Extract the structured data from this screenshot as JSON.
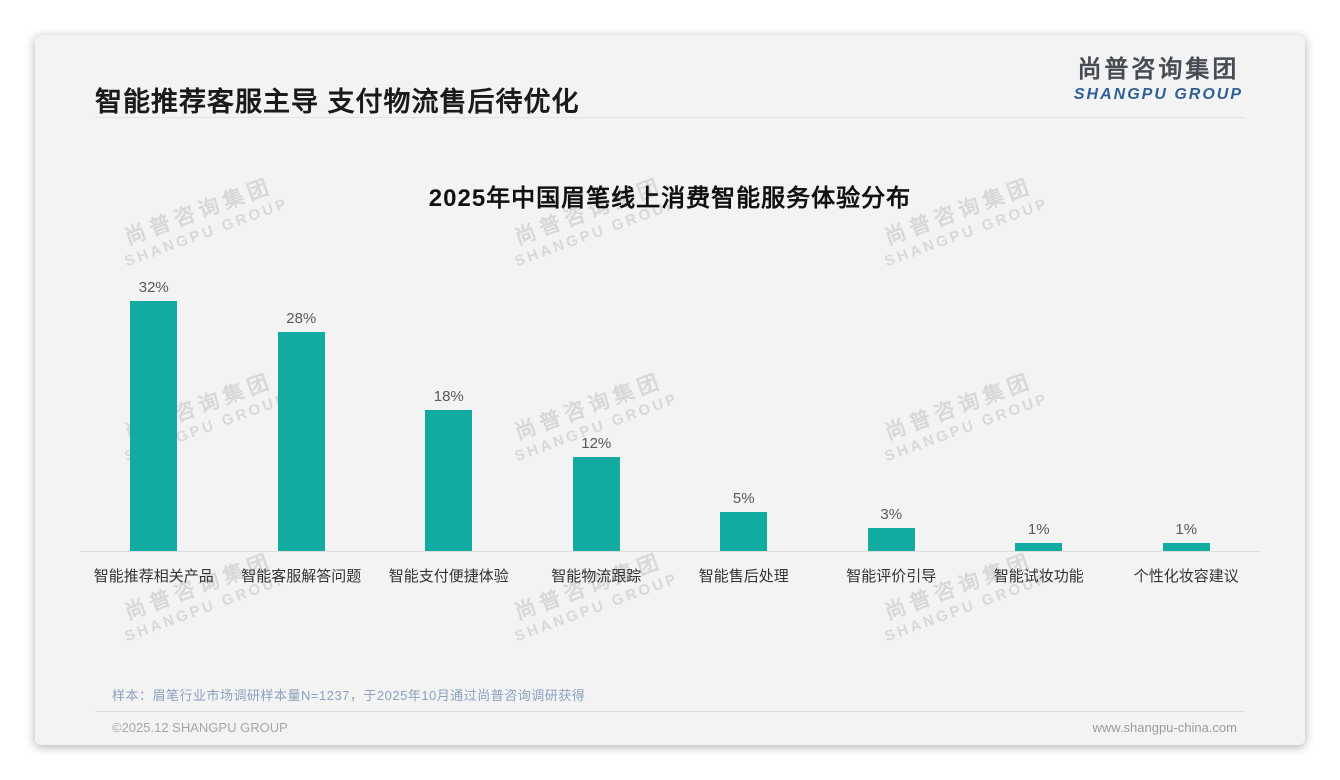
{
  "page": {
    "title": "智能推荐客服主导 支付物流售后待优化",
    "logo": {
      "cn": "尚普咨询集团",
      "en": "SHANGPU GROUP"
    },
    "watermark": {
      "cn": "尚普咨询集团",
      "en": "SHANGPU GROUP"
    },
    "footnote": "样本：眉笔行业市场调研样本量N=1237，于2025年10月通过尚普咨询调研获得",
    "copyright": "©2025.12 SHANGPU GROUP",
    "website": "www.shangpu-china.com"
  },
  "colors": {
    "bar": "#11aba2",
    "title": "#1a1a1a",
    "logo_en_blue": "#2e6096",
    "footnote_blue": "#8ba1bd"
  },
  "chart_data": {
    "type": "bar",
    "title": "2025年中国眉笔线上消费智能服务体验分布",
    "categories": [
      "智能推荐相关产品",
      "智能客服解答问题",
      "智能支付便捷体验",
      "智能物流跟踪",
      "智能售后处理",
      "智能评价引导",
      "智能试妆功能",
      "个性化妆容建议"
    ],
    "values": [
      32,
      28,
      18,
      12,
      5,
      3,
      1,
      1
    ],
    "value_labels": [
      "32%",
      "28%",
      "18%",
      "12%",
      "5%",
      "3%",
      "1%",
      "1%"
    ],
    "unit": "%",
    "xlabel": "",
    "ylabel": "",
    "ylim": [
      0,
      35
    ],
    "grid": false,
    "legend": false,
    "bar_color": "#11aba2"
  }
}
